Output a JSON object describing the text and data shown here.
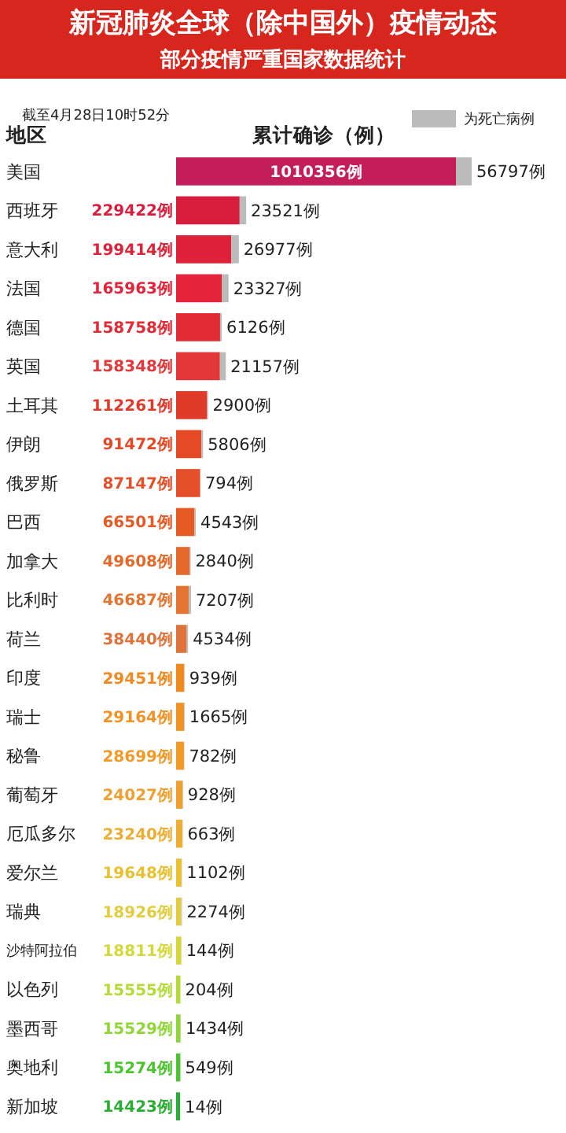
{
  "chart_data": {
    "type": "bar",
    "orientation": "horizontal",
    "stacked": true,
    "title": "新冠肺炎全球（除中国外）疫情动态",
    "subtitle": "部分疫情严重国家数据统计",
    "annotations": [
      "截至4月28日10时52分"
    ],
    "ylabel": "地区",
    "xlabel": "累计确诊（例）",
    "legend": "top right",
    "categories": [
      "美国",
      "西班牙",
      "意大利",
      "法国",
      "德国",
      "英国",
      "土耳其",
      "伊朗",
      "俄罗斯",
      "巴西",
      "加拿大",
      "比利时",
      "荷兰",
      "印度",
      "瑞士",
      "秘鲁",
      "葡萄牙",
      "厄瓜多尔",
      "爱尔兰",
      "瑞典",
      "沙特阿拉伯",
      "以色列",
      "墨西哥",
      "奥地利",
      "新加坡"
    ],
    "series": [
      {
        "colors": [
          "#c41e5a",
          "#d81e3c",
          "#e0213a",
          "#e3243a",
          "#e12b35",
          "#e3383a",
          "#e03a2a",
          "#e44a25",
          "#e4502a",
          "#e55a25",
          "#e36a2a",
          "#e37530",
          "#e0733a",
          "#f08a20",
          "#f09225",
          "#f09a2a",
          "#f0a030",
          "#eeae35",
          "#e8c030",
          "#e3cc40",
          "#d5d83a",
          "#b5db3a",
          "#8fd637",
          "#4cc42e",
          "#2aad33"
        ],
        "values": [
          1010356,
          229422,
          199414,
          165963,
          158758,
          158348,
          112261,
          91472,
          87147,
          66501,
          49608,
          46687,
          38440,
          29451,
          29164,
          28699,
          24027,
          23240,
          19648,
          18926,
          18811,
          15555,
          15529,
          15274,
          14423
        ],
        "value_labels": [
          "1010356例",
          "229422例",
          "199414例",
          "165963例",
          "158758例",
          "158348例",
          "112261例",
          "91472例",
          "87147例",
          "66501例",
          "49608例",
          "46687例",
          "38440例",
          "29451例",
          "29164例",
          "28699例",
          "24027例",
          "23240例",
          "19648例",
          "18926例",
          "18811例",
          "15555例",
          "15529例",
          "15274例",
          "14423例"
        ]
      },
      {
        "name": "为死亡病例",
        "color": "#bbbbbb",
        "values": [
          56797,
          23521,
          26977,
          23327,
          6126,
          21157,
          2900,
          5806,
          794,
          4543,
          2840,
          7207,
          4534,
          939,
          1665,
          782,
          928,
          663,
          1102,
          2274,
          144,
          204,
          1434,
          549,
          14
        ],
        "value_labels": [
          "56797例",
          "23521例",
          "26977例",
          "23327例",
          "6126例",
          "21157例",
          "2900例",
          "5806例",
          "794例",
          "4543例",
          "2840例",
          "7207例",
          "4534例",
          "939例",
          "1665例",
          "782例",
          "928例",
          "663例",
          "1102例",
          "2274例",
          "144例",
          "204例",
          "1434例",
          "549例",
          "14例"
        ]
      }
    ]
  }
}
